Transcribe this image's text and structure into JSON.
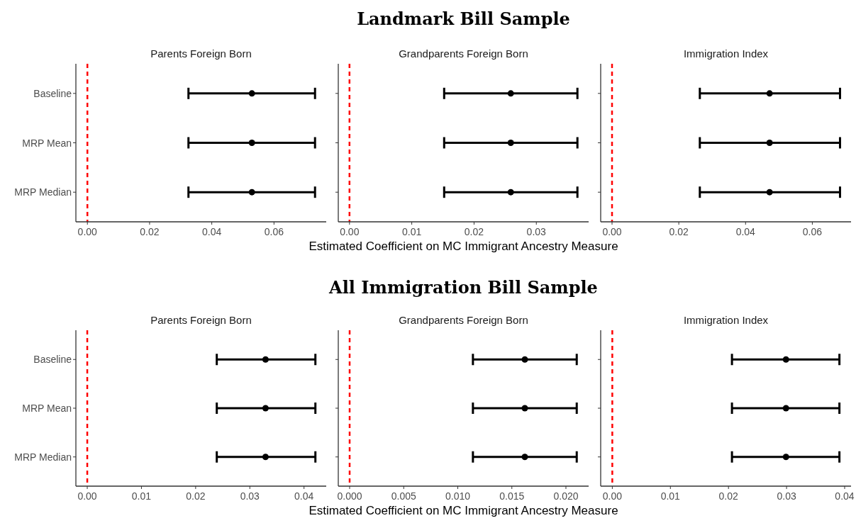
{
  "chart_data": [
    {
      "type": "scatter",
      "orientation": "horizontal",
      "subtitle": "Parents Foreign Born",
      "categories": [
        "Baseline",
        "MRP Mean",
        "MRP Median"
      ],
      "values": [
        0.0529,
        0.0529,
        0.0529
      ],
      "errors": [
        [
          0.0325,
          0.0732
        ],
        [
          0.0325,
          0.0732
        ],
        [
          0.0325,
          0.0732
        ]
      ],
      "color": "#000000",
      "marker": "circle",
      "xlim": [
        -0.0037,
        0.0768
      ],
      "xticks": [
        {
          "value": 0,
          "label": "0.00"
        },
        {
          "value": 0.02,
          "label": "0.02"
        },
        {
          "value": 0.04,
          "label": "0.04"
        },
        {
          "value": 0.06,
          "label": "0.06"
        }
      ],
      "ref_lines": [
        {
          "axis": "x",
          "value": 0,
          "color": "#ff0000",
          "line_style": "dashed"
        }
      ]
    },
    {
      "type": "scatter",
      "orientation": "horizontal",
      "title": "Landmark Bill Sample",
      "subtitle": "Grandparents Foreign Born",
      "xlabel": "Estimated Coefficient on MC Immigrant Ancestry Measure",
      "categories": [
        null,
        null,
        null
      ],
      "values": [
        0.0259,
        0.0259,
        0.0259
      ],
      "errors": [
        [
          0.0152,
          0.0366
        ],
        [
          0.0152,
          0.0366
        ],
        [
          0.0152,
          0.0366
        ]
      ],
      "color": "#000000",
      "marker": "circle",
      "xlim": [
        -0.0018,
        0.0384
      ],
      "xticks": [
        {
          "value": 0,
          "label": "0.00"
        },
        {
          "value": 0.01,
          "label": "0.01"
        },
        {
          "value": 0.02,
          "label": "0.02"
        },
        {
          "value": 0.03,
          "label": "0.03"
        }
      ],
      "ref_lines": [
        {
          "axis": "x",
          "value": 0,
          "color": "#ff0000",
          "line_style": "dashed"
        }
      ],
      "tick_labels": "x"
    },
    {
      "type": "scatter",
      "orientation": "horizontal",
      "subtitle": "Immigration Index",
      "categories": [
        null,
        null,
        null
      ],
      "values": [
        0.0472,
        0.0472,
        0.0472
      ],
      "errors": [
        [
          0.0263,
          0.0683
        ],
        [
          0.0263,
          0.0683
        ],
        [
          0.0263,
          0.0683
        ]
      ],
      "color": "#000000",
      "marker": "circle",
      "xlim": [
        -0.0034,
        0.0716
      ],
      "xticks": [
        {
          "value": 0,
          "label": "0.00"
        },
        {
          "value": 0.02,
          "label": "0.02"
        },
        {
          "value": 0.04,
          "label": "0.04"
        },
        {
          "value": 0.06,
          "label": "0.06"
        }
      ],
      "ref_lines": [
        {
          "axis": "x",
          "value": 0,
          "color": "#ff0000",
          "line_style": "dashed"
        }
      ],
      "tick_labels": "x"
    },
    {
      "type": "scatter",
      "orientation": "horizontal",
      "subtitle": "Parents Foreign Born",
      "categories": [
        "Baseline",
        "MRP Mean",
        "MRP Median"
      ],
      "values": [
        0.0329,
        0.0329,
        0.0329
      ],
      "errors": [
        [
          0.0239,
          0.0421
        ],
        [
          0.0239,
          0.0421
        ],
        [
          0.0239,
          0.0421
        ]
      ],
      "color": "#000000",
      "marker": "circle",
      "xlim": [
        -0.0021,
        0.0441
      ],
      "xticks": [
        {
          "value": 0,
          "label": "0.00"
        },
        {
          "value": 0.01,
          "label": "0.01"
        },
        {
          "value": 0.02,
          "label": "0.02"
        },
        {
          "value": 0.03,
          "label": "0.03"
        },
        {
          "value": 0.04,
          "label": "0.04"
        }
      ],
      "ref_lines": [
        {
          "axis": "x",
          "value": 0,
          "color": "#ff0000",
          "line_style": "dashed"
        }
      ]
    },
    {
      "type": "scatter",
      "orientation": "horizontal",
      "title": "All Immigration Bill Sample",
      "subtitle": "Grandparents Foreign Born",
      "xlabel": "Estimated Coefficient on MC Immigrant Ancestry Measure",
      "categories": [
        null,
        null,
        null
      ],
      "values": [
        0.0162,
        0.0162,
        0.0162
      ],
      "errors": [
        [
          0.0114,
          0.021
        ],
        [
          0.0114,
          0.021
        ],
        [
          0.0114,
          0.021
        ]
      ],
      "color": "#000000",
      "marker": "circle",
      "xlim": [
        -0.00105,
        0.0221
      ],
      "xticks": [
        {
          "value": 0,
          "label": "0.000"
        },
        {
          "value": 0.005,
          "label": "0.005"
        },
        {
          "value": 0.01,
          "label": "0.010"
        },
        {
          "value": 0.015,
          "label": "0.015"
        },
        {
          "value": 0.02,
          "label": "0.020"
        }
      ],
      "ref_lines": [
        {
          "axis": "x",
          "value": 0,
          "color": "#ff0000",
          "line_style": "dashed"
        }
      ],
      "tick_labels": "x"
    },
    {
      "type": "scatter",
      "orientation": "horizontal",
      "subtitle": "Immigration Index",
      "categories": [
        null,
        null,
        null
      ],
      "values": [
        0.0299,
        0.0299,
        0.0299
      ],
      "errors": [
        [
          0.0206,
          0.0391
        ],
        [
          0.0206,
          0.0391
        ],
        [
          0.0206,
          0.0391
        ]
      ],
      "color": "#000000",
      "marker": "circle",
      "xlim": [
        -0.002,
        0.0411
      ],
      "xticks": [
        {
          "value": 0,
          "label": "0.00"
        },
        {
          "value": 0.01,
          "label": "0.01"
        },
        {
          "value": 0.02,
          "label": "0.02"
        },
        {
          "value": 0.03,
          "label": "0.03"
        },
        {
          "value": 0.04,
          "label": "0.04"
        }
      ],
      "ref_lines": [
        {
          "axis": "x",
          "value": 0,
          "color": "#ff0000",
          "line_style": "dashed"
        }
      ],
      "tick_labels": "x"
    }
  ]
}
